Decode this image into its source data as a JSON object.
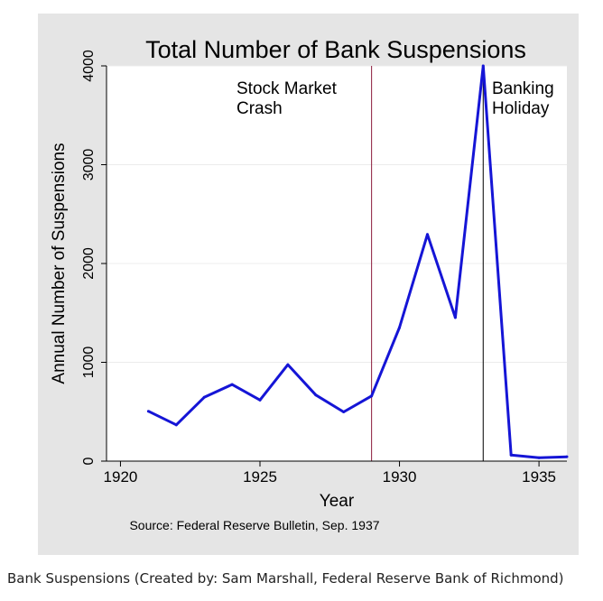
{
  "chart_data": {
    "type": "line",
    "title": "Total Number of Bank Suspensions",
    "xlabel": "Year",
    "ylabel": "Annual Number of Suspensions",
    "source": "Source: Federal Reserve Bulletin, Sep. 1937",
    "xlim": [
      1919.5,
      1936
    ],
    "ylim": [
      0,
      4000
    ],
    "x_ticks": [
      "1920",
      "1925",
      "1930",
      "1935"
    ],
    "y_ticks": [
      "0",
      "1000",
      "2000",
      "3000",
      "4000"
    ],
    "grid": "horizontal",
    "series": [
      {
        "color": "#1515d6",
        "x": [
          1921,
          1922,
          1923,
          1924,
          1925,
          1926,
          1927,
          1928,
          1929,
          1930,
          1931,
          1932,
          1933,
          1934,
          1935,
          1936
        ],
        "y": [
          505,
          367,
          646,
          775,
          618,
          976,
          669,
          498,
          659,
          1352,
          2294,
          1453,
          4000,
          61,
          34,
          44
        ]
      }
    ],
    "annotations": [
      {
        "x": 1929,
        "color": "#8b1a3a",
        "text_lines": [
          "Stock Market",
          "Crash"
        ]
      },
      {
        "x": 1933,
        "color": "#000000",
        "text_lines": [
          "Banking",
          "Holiday"
        ]
      }
    ]
  },
  "caption": "Bank Suspensions (Created by: Sam Marshall, Federal Reserve Bank of Richmond)"
}
